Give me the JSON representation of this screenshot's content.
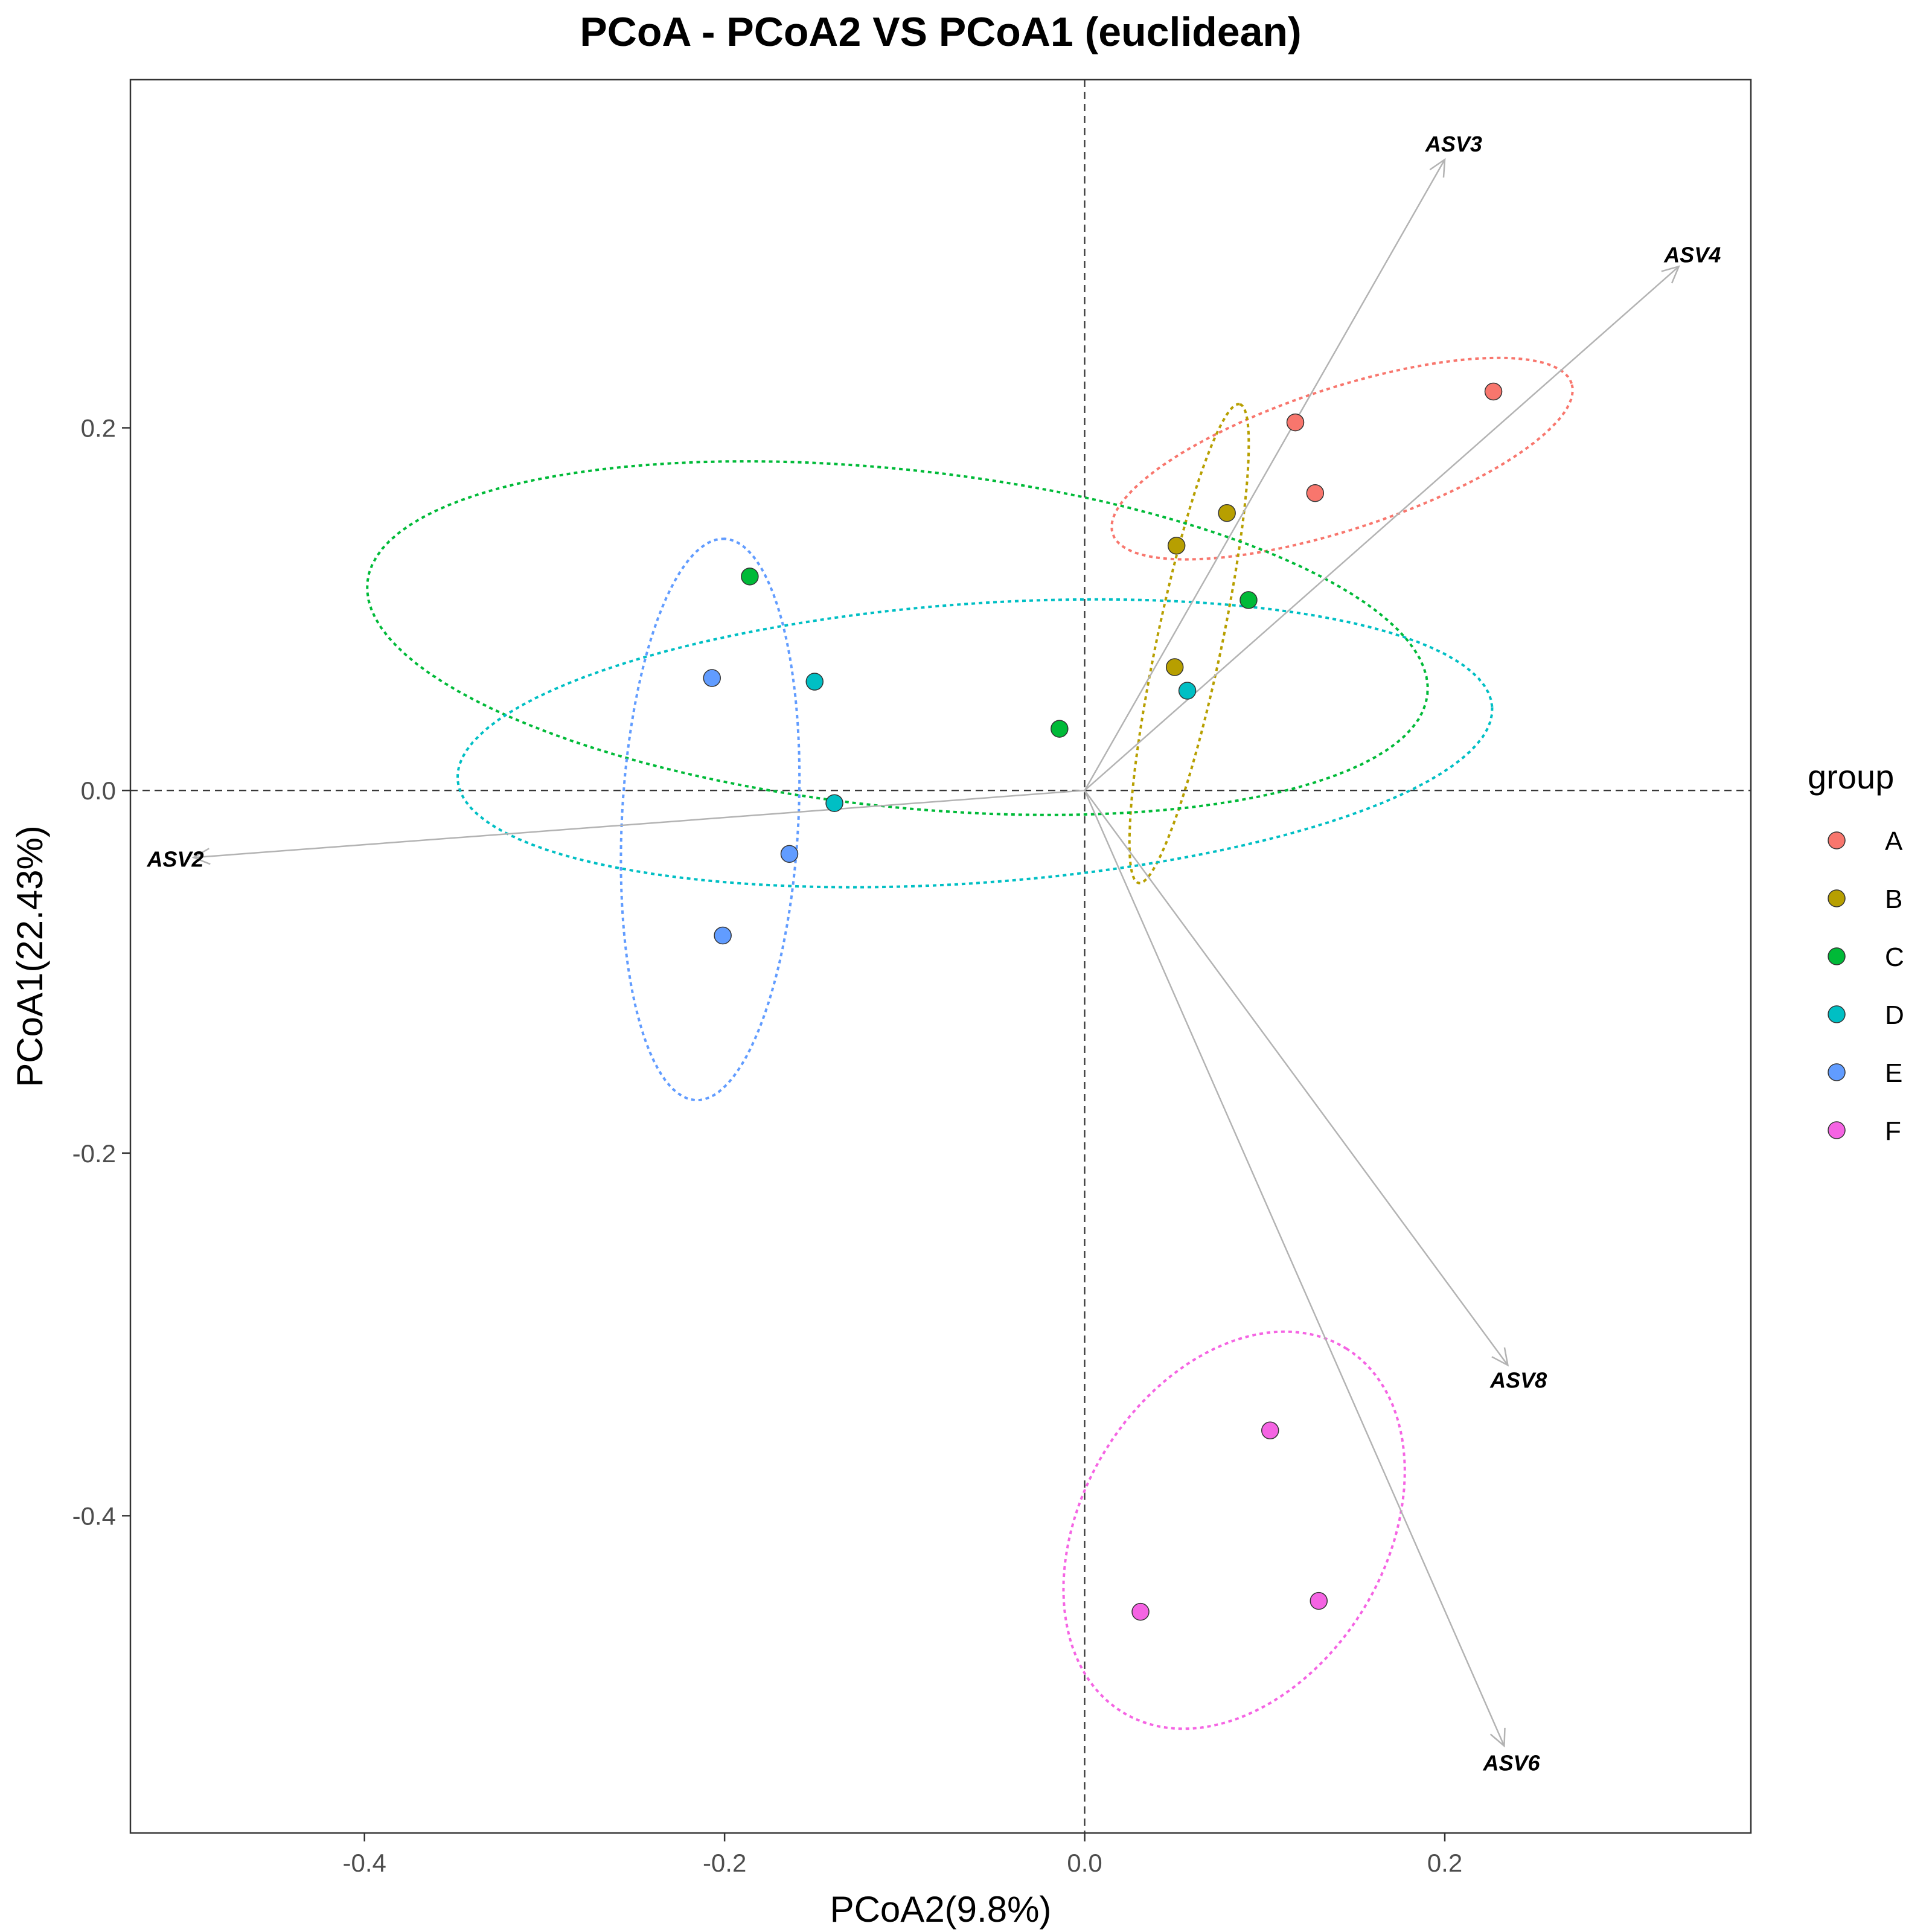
{
  "chart_data": {
    "type": "scatter",
    "title": "PCoA - PCoA2 VS PCoA1 (euclidean)",
    "xlabel": "PCoA2(9.8%)",
    "ylabel": "PCoA1(22.43%)",
    "xlim": [
      -0.53,
      0.37
    ],
    "ylim": [
      -0.575,
      0.392
    ],
    "x_ticks": [
      -0.4,
      -0.2,
      0.0,
      0.2
    ],
    "y_ticks": [
      -0.4,
      -0.2,
      0.0,
      0.2
    ],
    "x_tick_labels": [
      "-0.4",
      "-0.2",
      "0.0",
      "0.2"
    ],
    "y_tick_labels": [
      "-0.4",
      "-0.2",
      "0.0",
      "0.2"
    ],
    "grid": false,
    "reference_lines": {
      "x": 0,
      "y": 0,
      "style": "dashed"
    },
    "legend": {
      "title": "group",
      "placement": "right"
    },
    "series": [
      {
        "name": "A",
        "color": "#F8766D",
        "points": [
          [
            0.117,
            0.203
          ],
          [
            0.128,
            0.164
          ],
          [
            0.227,
            0.22
          ]
        ]
      },
      {
        "name": "B",
        "color": "#B79F00",
        "points": [
          [
            0.051,
            0.135
          ],
          [
            0.079,
            0.153
          ],
          [
            0.05,
            0.068
          ]
        ]
      },
      {
        "name": "C",
        "color": "#00BA38",
        "points": [
          [
            -0.186,
            0.118
          ],
          [
            0.091,
            0.105
          ],
          [
            -0.014,
            0.034
          ]
        ]
      },
      {
        "name": "D",
        "color": "#00BFC4",
        "points": [
          [
            -0.15,
            0.06
          ],
          [
            0.057,
            0.055
          ],
          [
            -0.139,
            -0.007
          ]
        ]
      },
      {
        "name": "E",
        "color": "#619CFF",
        "points": [
          [
            -0.207,
            0.062
          ],
          [
            -0.164,
            -0.035
          ],
          [
            -0.201,
            -0.08
          ]
        ]
      },
      {
        "name": "F",
        "color": "#F564E3",
        "points": [
          [
            0.103,
            -0.353
          ],
          [
            0.031,
            -0.453
          ],
          [
            0.13,
            -0.447
          ]
        ]
      }
    ],
    "ellipses": [
      {
        "group": "A",
        "center": [
          0.143,
          0.183
        ],
        "rx": 0.134,
        "ry": 0.039,
        "angle_deg": 18
      },
      {
        "group": "B",
        "center": [
          0.058,
          0.081
        ],
        "rx": 0.135,
        "ry": 0.018,
        "angle_deg": 78
      },
      {
        "group": "C",
        "center": [
          -0.104,
          0.084
        ],
        "rx": 0.296,
        "ry": 0.093,
        "angle_deg": -6
      },
      {
        "group": "D",
        "center": [
          -0.061,
          0.026
        ],
        "rx": 0.288,
        "ry": 0.077,
        "angle_deg": 4
      },
      {
        "group": "E",
        "center": [
          -0.208,
          -0.016
        ],
        "rx": 0.155,
        "ry": 0.049,
        "angle_deg": 87
      },
      {
        "group": "F",
        "center": [
          0.083,
          -0.408
        ],
        "rx": 0.118,
        "ry": 0.084,
        "angle_deg": 58
      }
    ],
    "arrows": [
      {
        "label": "ASV3",
        "end": [
          0.2,
          0.348
        ]
      },
      {
        "label": "ASV4",
        "end": [
          0.33,
          0.289
        ]
      },
      {
        "label": "ASV2",
        "end": [
          -0.495,
          -0.037
        ]
      },
      {
        "label": "ASV8",
        "end": [
          0.235,
          -0.317
        ]
      },
      {
        "label": "ASV6",
        "end": [
          0.233,
          -0.527
        ]
      }
    ]
  }
}
